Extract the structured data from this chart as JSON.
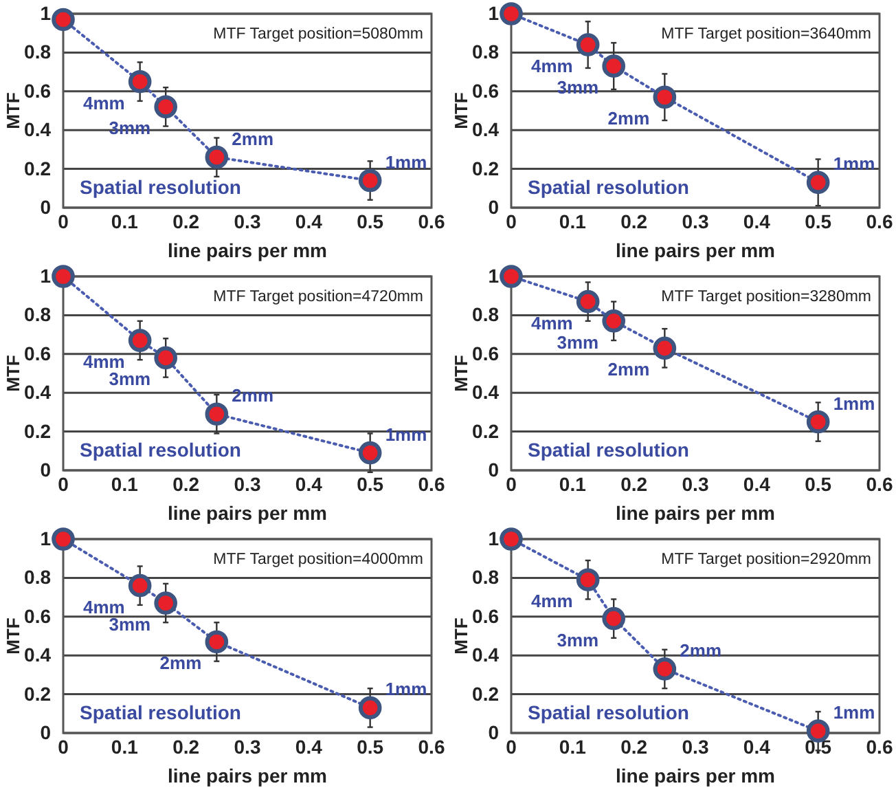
{
  "chart_data": [
    {
      "type": "line",
      "xlabel": "line pairs per mm",
      "ylabel": "MTF",
      "x": [
        0,
        0.125,
        0.167,
        0.25,
        0.5
      ],
      "series": [
        {
          "color": "#e8202a",
          "values": [
            0.97,
            0.65,
            0.52,
            0.26,
            0.14
          ],
          "errors": [
            null,
            0.1,
            0.1,
            0.1,
            0.1
          ]
        }
      ],
      "xlim": [
        0,
        0.6
      ],
      "ylim": [
        0,
        1
      ],
      "xticks": [
        0,
        0.1,
        0.2,
        0.3,
        0.4,
        0.5,
        0.6
      ],
      "yticks": [
        0,
        0.2,
        0.4,
        0.6,
        0.8,
        1
      ],
      "grid": "y",
      "marker": "circle",
      "line_style": "dotted",
      "annotations": [
        "MTF Target position=5080mm",
        "Spatial resolution",
        {
          "text": "4mm",
          "x": 0.125,
          "y": 0.65
        },
        {
          "text": "3mm",
          "x": 0.167,
          "y": 0.52
        },
        {
          "text": "2mm",
          "x": 0.25,
          "y": 0.26
        },
        {
          "text": "1mm",
          "x": 0.5,
          "y": 0.14
        }
      ]
    },
    {
      "type": "line",
      "xlabel": "line pairs per mm",
      "ylabel": "MTF",
      "x": [
        0,
        0.125,
        0.167,
        0.25,
        0.5
      ],
      "series": [
        {
          "color": "#e8202a",
          "values": [
            1,
            0.84,
            0.73,
            0.57,
            0.13
          ],
          "errors": [
            null,
            0.12,
            0.12,
            0.12,
            0.12
          ]
        }
      ],
      "xlim": [
        0,
        0.6
      ],
      "ylim": [
        0,
        1
      ],
      "xticks": [
        0,
        0.1,
        0.2,
        0.3,
        0.4,
        0.5,
        0.6
      ],
      "yticks": [
        0,
        0.2,
        0.4,
        0.6,
        0.8,
        1
      ],
      "grid": "y",
      "marker": "circle",
      "line_style": "dotted",
      "annotations": [
        "MTF Target position=3640mm",
        "Spatial resolution",
        {
          "text": "4mm",
          "x": 0.125,
          "y": 0.84
        },
        {
          "text": "3mm",
          "x": 0.167,
          "y": 0.73
        },
        {
          "text": "2mm",
          "x": 0.25,
          "y": 0.57
        },
        {
          "text": "1mm",
          "x": 0.5,
          "y": 0.13
        }
      ]
    },
    {
      "type": "line",
      "xlabel": "line pairs per mm",
      "ylabel": "MTF",
      "x": [
        0,
        0.125,
        0.167,
        0.25,
        0.5
      ],
      "series": [
        {
          "color": "#e8202a",
          "values": [
            1,
            0.67,
            0.58,
            0.29,
            0.09
          ],
          "errors": [
            null,
            0.1,
            0.1,
            0.1,
            0.1
          ]
        }
      ],
      "xlim": [
        0,
        0.6
      ],
      "ylim": [
        0,
        1
      ],
      "xticks": [
        0,
        0.1,
        0.2,
        0.3,
        0.4,
        0.5,
        0.6
      ],
      "yticks": [
        0,
        0.2,
        0.4,
        0.6,
        0.8,
        1
      ],
      "grid": "y",
      "marker": "circle",
      "line_style": "dotted",
      "annotations": [
        "MTF Target position=4720mm",
        "Spatial resolution",
        {
          "text": "4mm",
          "x": 0.125,
          "y": 0.67
        },
        {
          "text": "3mm",
          "x": 0.167,
          "y": 0.58
        },
        {
          "text": "2mm",
          "x": 0.25,
          "y": 0.29
        },
        {
          "text": "1mm",
          "x": 0.5,
          "y": 0.09
        }
      ]
    },
    {
      "type": "line",
      "xlabel": "line pairs per mm",
      "ylabel": "MTF",
      "x": [
        0,
        0.125,
        0.167,
        0.25,
        0.5
      ],
      "series": [
        {
          "color": "#e8202a",
          "values": [
            1,
            0.87,
            0.77,
            0.63,
            0.25
          ],
          "errors": [
            null,
            0.1,
            0.1,
            0.1,
            0.1
          ]
        }
      ],
      "xlim": [
        0,
        0.6
      ],
      "ylim": [
        0,
        1
      ],
      "xticks": [
        0,
        0.1,
        0.2,
        0.3,
        0.4,
        0.5,
        0.6
      ],
      "yticks": [
        0,
        0.2,
        0.4,
        0.6,
        0.8,
        1
      ],
      "grid": "y",
      "marker": "circle",
      "line_style": "dotted",
      "annotations": [
        "MTF Target position=3280mm",
        "Spatial resolution",
        {
          "text": "4mm",
          "x": 0.125,
          "y": 0.87
        },
        {
          "text": "3mm",
          "x": 0.167,
          "y": 0.77
        },
        {
          "text": "2mm",
          "x": 0.25,
          "y": 0.63
        },
        {
          "text": "1mm",
          "x": 0.5,
          "y": 0.25
        }
      ]
    },
    {
      "type": "line",
      "xlabel": "line pairs per mm",
      "ylabel": "MTF",
      "x": [
        0,
        0.125,
        0.167,
        0.25,
        0.5
      ],
      "series": [
        {
          "color": "#e8202a",
          "values": [
            1,
            0.76,
            0.67,
            0.47,
            0.13
          ],
          "errors": [
            null,
            0.1,
            0.1,
            0.1,
            0.1
          ]
        }
      ],
      "xlim": [
        0,
        0.6
      ],
      "ylim": [
        0,
        1
      ],
      "xticks": [
        0,
        0.1,
        0.2,
        0.3,
        0.4,
        0.5,
        0.6
      ],
      "yticks": [
        0,
        0.2,
        0.4,
        0.6,
        0.8,
        1
      ],
      "grid": "y",
      "marker": "circle",
      "line_style": "dotted",
      "annotations": [
        "MTF Target position=4000mm",
        "Spatial resolution",
        {
          "text": "4mm",
          "x": 0.125,
          "y": 0.76
        },
        {
          "text": "3mm",
          "x": 0.167,
          "y": 0.67
        },
        {
          "text": "2mm",
          "x": 0.25,
          "y": 0.47
        },
        {
          "text": "1mm",
          "x": 0.5,
          "y": 0.13
        }
      ]
    },
    {
      "type": "line",
      "xlabel": "line pairs per mm",
      "ylabel": "MTF",
      "x": [
        0,
        0.125,
        0.167,
        0.25,
        0.5
      ],
      "series": [
        {
          "color": "#e8202a",
          "values": [
            1,
            0.79,
            0.59,
            0.33,
            0.01
          ],
          "errors": [
            null,
            0.1,
            0.1,
            0.1,
            0.1
          ]
        }
      ],
      "xlim": [
        0,
        0.6
      ],
      "ylim": [
        0,
        1
      ],
      "xticks": [
        0,
        0.1,
        0.2,
        0.3,
        0.4,
        0.5,
        0.6
      ],
      "yticks": [
        0,
        0.2,
        0.4,
        0.6,
        0.8,
        1
      ],
      "grid": "y",
      "marker": "circle",
      "line_style": "dotted",
      "annotations": [
        "MTF Target position=2920mm",
        "Spatial resolution",
        {
          "text": "4mm",
          "x": 0.125,
          "y": 0.79
        },
        {
          "text": "3mm",
          "x": 0.167,
          "y": 0.59
        },
        {
          "text": "2mm",
          "x": 0.25,
          "y": 0.33
        },
        {
          "text": "1mm",
          "x": 0.5,
          "y": 0.01
        }
      ]
    }
  ]
}
